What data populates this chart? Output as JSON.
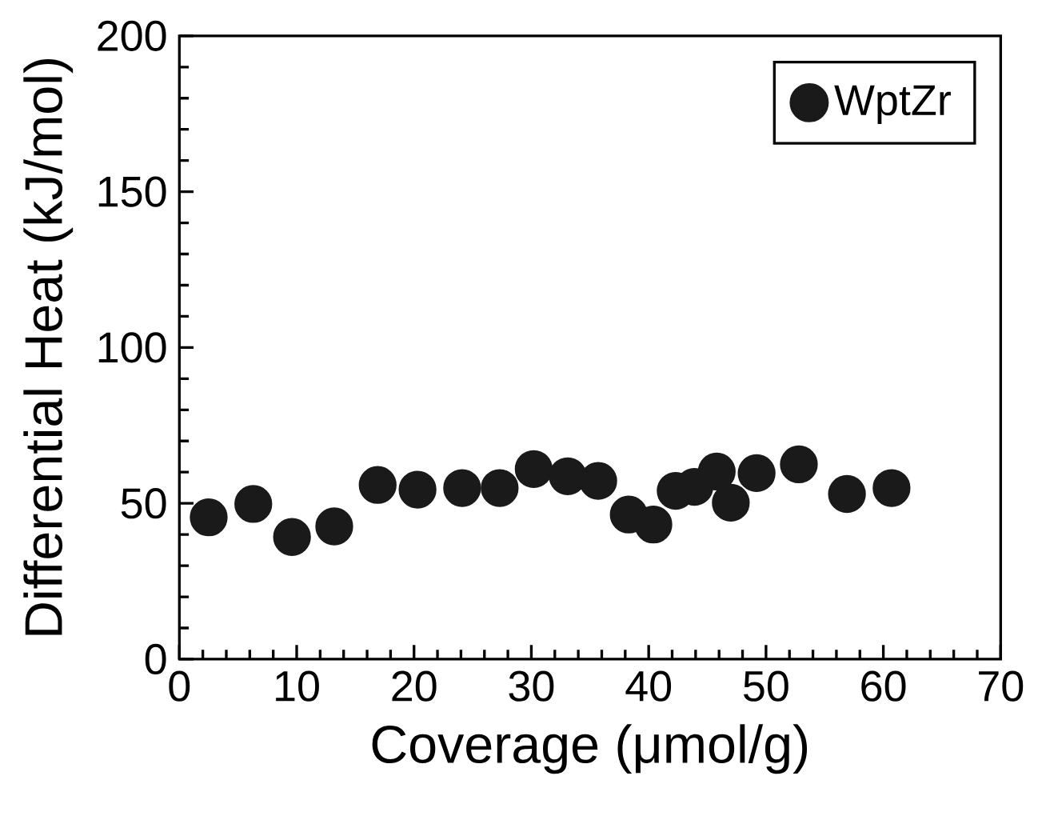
{
  "chart_data": {
    "type": "scatter",
    "xlabel": "Coverage (μmol/g)",
    "ylabel": "Differential Heat (kJ/mol)",
    "xlim": [
      0,
      70
    ],
    "ylim": [
      0,
      200
    ],
    "xticks": [
      0,
      10,
      20,
      30,
      40,
      50,
      60,
      70
    ],
    "yticks": [
      0,
      50,
      100,
      150,
      200
    ],
    "legend": "top right",
    "marker": "circle",
    "series": [
      {
        "name": "WptZr",
        "color": "#1a1a1a",
        "x": [
          2.5,
          6.3,
          9.6,
          13.2,
          16.9,
          20.3,
          24.1,
          27.3,
          30.2,
          33.1,
          35.7,
          38.3,
          40.4,
          42.3,
          43.9,
          45.8,
          47.0,
          49.2,
          52.8,
          56.9,
          60.7
        ],
        "values": [
          45.5,
          49.8,
          39.2,
          42.6,
          55.9,
          54.4,
          54.9,
          54.9,
          61.0,
          58.7,
          57.2,
          46.4,
          43.2,
          54.0,
          55.3,
          60.2,
          50.2,
          59.7,
          62.5,
          53.0,
          54.9
        ]
      }
    ]
  }
}
